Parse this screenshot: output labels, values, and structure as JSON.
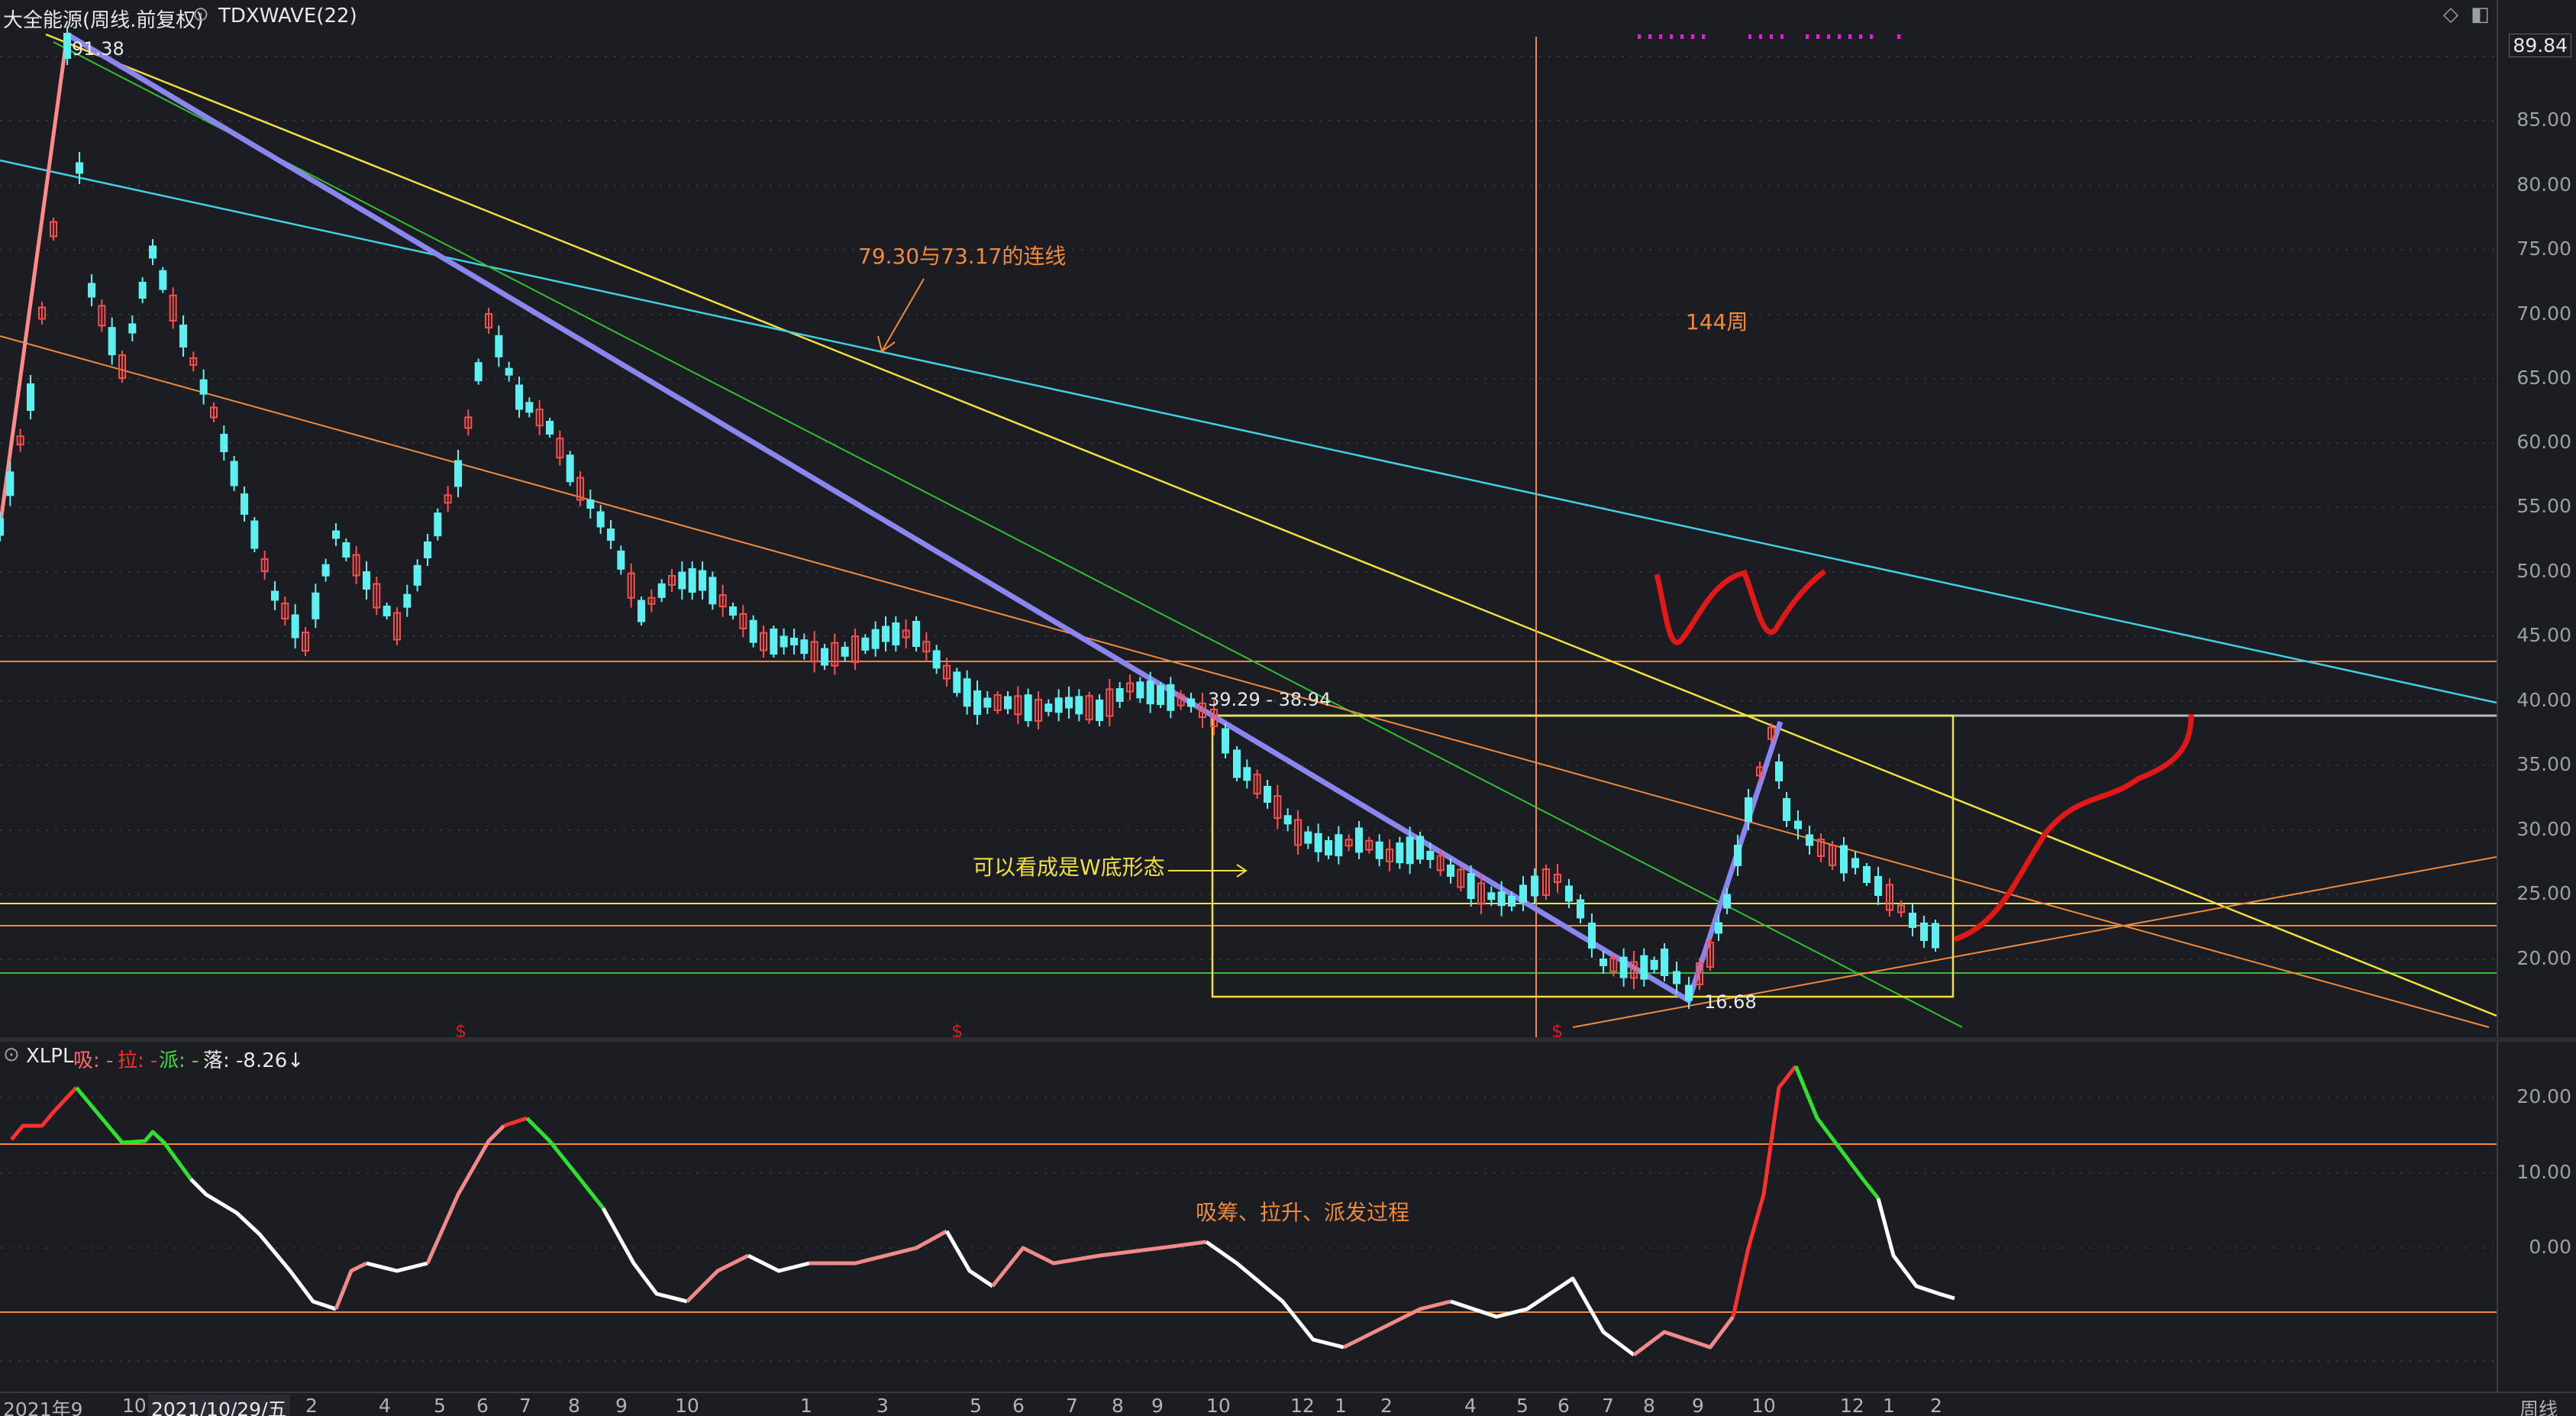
{
  "header": {
    "stock_name": "大全能源(周线.前复权)",
    "indicator": "TDXWAVE(22)",
    "last_price": "89.84"
  },
  "main_axis_ticks": [
    "85.00",
    "80.00",
    "75.00",
    "70.00",
    "65.00",
    "60.00",
    "55.00",
    "50.00",
    "45.00",
    "40.00",
    "35.00",
    "30.00",
    "25.00",
    "20.00"
  ],
  "osc_header": {
    "name": "XLPL",
    "xi_label": "吸: -",
    "la_label": "拉: -",
    "pai_label": "派: -",
    "luo_label": "落: -8.26↓"
  },
  "osc_axis_ticks": [
    "20.00",
    "10.00",
    "0.00"
  ],
  "annotations": {
    "high_label": "91.38",
    "low_label": "16.68",
    "range_label": "39.29 - 38.94",
    "trendline_note": "79.30与73.17的连线",
    "cycle_note": "144周",
    "w_note": "可以看成是W底形态",
    "osc_note": "吸筹、拉升、派发过程",
    "dollar_mark": "$"
  },
  "x_axis_labels": [
    "2021年9",
    "10",
    "2021/10/29/五",
    "2",
    "4",
    "5",
    "6",
    "7",
    "8",
    "9",
    "10",
    "1",
    "3",
    "5",
    "6",
    "7",
    "8",
    "9",
    "10",
    "12",
    "1",
    "2",
    "4",
    "5",
    "6",
    "7",
    "8",
    "9",
    "10",
    "12",
    "1",
    "2"
  ],
  "period_label": "周线",
  "colors": {
    "up": "#ff4d4d",
    "down": "#5ef0f0",
    "yellow": "#f0e040",
    "orange": "#f08a3c",
    "cyan": "#40d0e0",
    "green": "#30c030",
    "purple": "#8a86f0",
    "red_draw": "#e01818",
    "magenta": "#e020e0"
  }
}
